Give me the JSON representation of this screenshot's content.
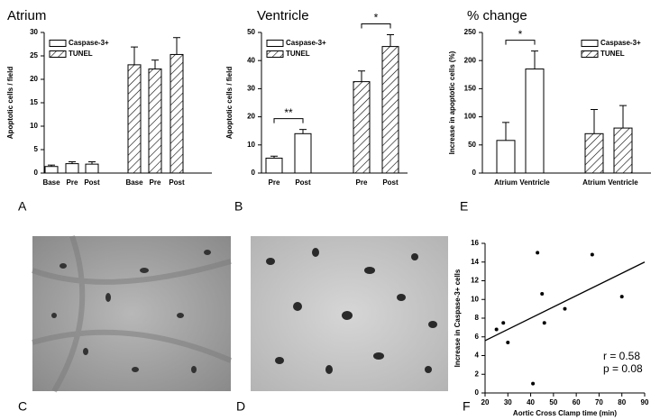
{
  "chart_data": [
    {
      "type": "bar",
      "panel": "A",
      "title": "Atrium",
      "ylabel": "Apoptotic cells / field",
      "ylim": [
        0,
        30
      ],
      "yticks": [
        0,
        5,
        10,
        15,
        20,
        25,
        30
      ],
      "legend": "upper left",
      "series": [
        {
          "name": "Caspase-3+",
          "color": "#ffffff",
          "pattern": "none",
          "categories": [
            "Base",
            "Pre",
            "Post"
          ],
          "values": [
            1.4,
            2.0,
            1.9
          ],
          "errors": [
            0.3,
            0.4,
            0.5
          ]
        },
        {
          "name": "TUNEL",
          "color": "#ffffff",
          "pattern": "hatch",
          "categories": [
            "Base",
            "Pre",
            "Post"
          ],
          "values": [
            23.1,
            22.2,
            25.3
          ],
          "errors": [
            3.8,
            1.9,
            3.6
          ]
        }
      ],
      "annotations": []
    },
    {
      "type": "bar",
      "panel": "B",
      "title": "Ventricle",
      "ylabel": "Apoptotic cells / field",
      "ylim": [
        0,
        50
      ],
      "yticks": [
        0,
        10,
        20,
        30,
        40,
        50
      ],
      "legend": "upper left",
      "series": [
        {
          "name": "Caspase-3+",
          "color": "#ffffff",
          "pattern": "none",
          "categories": [
            "Pre",
            "Post"
          ],
          "values": [
            5.3,
            14.0
          ],
          "errors": [
            0.7,
            1.5
          ]
        },
        {
          "name": "TUNEL",
          "color": "#ffffff",
          "pattern": "hatch",
          "categories": [
            "Pre",
            "Post"
          ],
          "values": [
            32.5,
            45.0
          ],
          "errors": [
            3.8,
            4.2
          ]
        }
      ],
      "annotations": [
        "**",
        "*"
      ]
    },
    {
      "type": "bar",
      "panel": "E",
      "title": "% change",
      "ylabel": "Increase in apoptotic cells (%)",
      "ylim": [
        0,
        250
      ],
      "yticks": [
        0,
        50,
        100,
        150,
        200,
        250
      ],
      "legend": "upper right",
      "series": [
        {
          "name": "Caspase-3+",
          "color": "#ffffff",
          "pattern": "none",
          "categories": [
            "Atrium",
            "Ventricle"
          ],
          "values": [
            58,
            185
          ],
          "errors": [
            32,
            32
          ]
        },
        {
          "name": "TUNEL",
          "color": "#ffffff",
          "pattern": "hatch",
          "categories": [
            "Atrium",
            "Ventricle"
          ],
          "values": [
            70,
            80
          ],
          "errors": [
            43,
            40
          ]
        }
      ],
      "annotations": [
        "*"
      ]
    },
    {
      "type": "scatter",
      "panel": "F",
      "xlabel": "Aortic Cross Clamp time (min)",
      "ylabel": "Increase in Caspase-3+ cells",
      "xlim": [
        20,
        90
      ],
      "xticks": [
        20,
        30,
        40,
        50,
        60,
        70,
        80,
        90
      ],
      "ylim": [
        0,
        16
      ],
      "yticks": [
        0,
        2,
        4,
        6,
        8,
        10,
        12,
        14,
        16
      ],
      "color": "#000000",
      "x": [
        25,
        28,
        30,
        41,
        43,
        45,
        46,
        55,
        67,
        80
      ],
      "values": [
        6.8,
        7.5,
        5.4,
        1.0,
        15.0,
        10.6,
        7.5,
        9.0,
        14.8,
        10.3
      ],
      "fit": {
        "x": [
          20,
          90
        ],
        "values": [
          5.6,
          14.0
        ]
      },
      "annotations": [
        "r = 0.58",
        "p = 0.08"
      ]
    }
  ],
  "images": [
    {
      "panel": "C"
    },
    {
      "panel": "D"
    }
  ]
}
